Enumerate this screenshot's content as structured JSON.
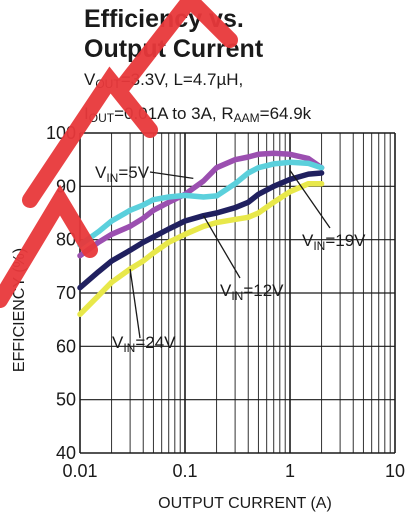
{
  "title": {
    "line1": "Efficiency vs.",
    "line2": "Output Current"
  },
  "conditions": {
    "line1": {
      "a": "V",
      "a_sub": "OUT",
      "a_rest": "=3.3V, L=4.7µH,"
    },
    "line2": {
      "a": "I",
      "a_sub": "OUT",
      "a_rest": "=0.01A to 3A, R",
      "b_sub": "AAM",
      "b_rest": "=64.9k"
    }
  },
  "colors": {
    "vin5": "#9b4fb0",
    "vin12": "#20205f",
    "vin19": "#5bd0dc",
    "vin24": "#e8e84a",
    "watermark": "#e8383b",
    "grid": "#1a1a1a"
  },
  "chart_data": {
    "type": "line",
    "x_scale": "log",
    "xlim": [
      0.01,
      10
    ],
    "ylim": [
      40,
      100
    ],
    "xlabel": "OUTPUT CURRENT (A)",
    "ylabel": "EFFICIENCY (%)",
    "x_ticks": [
      "0.01",
      "0.1",
      "1",
      "10"
    ],
    "y_ticks": [
      "40",
      "50",
      "60",
      "70",
      "80",
      "90",
      "100"
    ],
    "grid": true,
    "series": [
      {
        "name": "VIN=5V",
        "label_main": "V",
        "label_sub": "IN",
        "label_rest": "=5V",
        "color_key": "vin5",
        "x": [
          0.01,
          0.015,
          0.02,
          0.03,
          0.04,
          0.05,
          0.07,
          0.1,
          0.15,
          0.2,
          0.3,
          0.4,
          0.5,
          0.7,
          1.0,
          1.5,
          2.0
        ],
        "y": [
          77,
          79.5,
          81,
          82.5,
          84,
          85.5,
          87,
          88.5,
          91,
          93.5,
          95,
          95.5,
          96,
          96.2,
          96,
          95.2,
          93.5
        ]
      },
      {
        "name": "VIN=12V",
        "label_main": "V",
        "label_sub": "IN",
        "label_rest": "=12V",
        "color_key": "vin12",
        "x": [
          0.01,
          0.015,
          0.02,
          0.03,
          0.04,
          0.05,
          0.07,
          0.1,
          0.15,
          0.2,
          0.3,
          0.4,
          0.5,
          0.7,
          1.0,
          1.5,
          2.0
        ],
        "y": [
          71,
          74,
          76,
          78,
          79.5,
          80.5,
          82,
          83.5,
          84.5,
          85,
          86,
          87,
          88.5,
          90,
          91.3,
          92.3,
          92.5
        ]
      },
      {
        "name": "VIN=19V",
        "label_main": "V",
        "label_sub": "IN",
        "label_rest": "=19V",
        "color_key": "vin19",
        "x": [
          0.01,
          0.015,
          0.02,
          0.03,
          0.04,
          0.05,
          0.07,
          0.1,
          0.15,
          0.2,
          0.3,
          0.4,
          0.5,
          0.7,
          1.0,
          1.5,
          2.0
        ],
        "y": [
          79,
          81.5,
          83.5,
          85.5,
          86.5,
          87.5,
          88,
          88.3,
          88,
          88.2,
          90.5,
          92.5,
          93.5,
          94.2,
          94.5,
          94.3,
          93.5
        ]
      },
      {
        "name": "VIN=24V",
        "label_main": "V",
        "label_sub": "IN",
        "label_rest": "=24V",
        "color_key": "vin24",
        "x": [
          0.01,
          0.015,
          0.02,
          0.03,
          0.04,
          0.05,
          0.07,
          0.1,
          0.15,
          0.2,
          0.3,
          0.4,
          0.5,
          0.7,
          1.0,
          1.5,
          2.0
        ],
        "y": [
          66,
          69.5,
          72,
          74.5,
          76,
          77.5,
          79.5,
          81,
          82.5,
          83.2,
          83.8,
          84.2,
          85,
          87,
          89,
          90.5,
          90.5
        ]
      }
    ]
  }
}
